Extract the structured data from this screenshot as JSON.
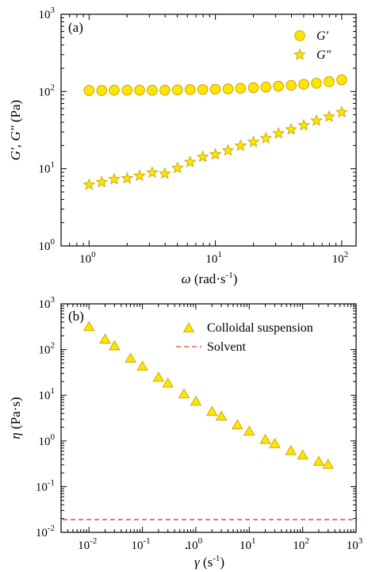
{
  "colors": {
    "marker_fill": "#FFE600",
    "marker_stroke": "#C8A200",
    "solvent_line": "#E03A2A",
    "axis": "#000000"
  },
  "chart_data": [
    {
      "type": "scatter",
      "panel_label": "(a)",
      "xlabel_symbol": "ω",
      "xlabel_unit": " (rad·s",
      "xlabel_unit_sup": "-1",
      "xlabel_unit_tail": ")",
      "ylabel_g1": "G′",
      "ylabel_sep": ", ",
      "ylabel_g2": "G″",
      "ylabel_unit": " (Pa)",
      "x_scale": "log",
      "y_scale": "log",
      "xlim": [
        0.6,
        130
      ],
      "ylim": [
        1,
        1000
      ],
      "x_ticks": [
        {
          "value": 1,
          "base": "10",
          "exp": "0"
        },
        {
          "value": 10,
          "base": "10",
          "exp": "1"
        },
        {
          "value": 100,
          "base": "10",
          "exp": "2"
        }
      ],
      "y_ticks": [
        {
          "value": 1,
          "base": "10",
          "exp": "0"
        },
        {
          "value": 10,
          "base": "10",
          "exp": "1"
        },
        {
          "value": 100,
          "base": "10",
          "exp": "2"
        },
        {
          "value": 1000,
          "base": "10",
          "exp": "3"
        }
      ],
      "legend_position": "top-right",
      "series": [
        {
          "name": "G′",
          "marker": "circle",
          "x": [
            1.0,
            1.26,
            1.58,
            2.0,
            2.51,
            3.16,
            3.98,
            5.01,
            6.31,
            7.94,
            10.0,
            12.6,
            15.8,
            20.0,
            25.1,
            31.6,
            39.8,
            50.1,
            63.1,
            79.4,
            100.0
          ],
          "y": [
            103,
            103,
            104,
            104,
            104,
            104,
            104,
            105,
            106,
            106,
            107,
            108,
            110,
            112,
            114,
            117,
            120,
            124,
            128,
            134,
            142
          ]
        },
        {
          "name": "G″",
          "marker": "star",
          "x": [
            1.0,
            1.26,
            1.58,
            2.0,
            2.51,
            3.16,
            3.98,
            5.01,
            6.31,
            7.94,
            10.0,
            12.6,
            15.8,
            20.0,
            25.1,
            31.6,
            39.8,
            50.1,
            63.1,
            79.4,
            100.0
          ],
          "y": [
            6.2,
            6.7,
            7.3,
            7.5,
            8.1,
            8.9,
            8.6,
            10.2,
            12.2,
            14.2,
            15.3,
            17.2,
            19.8,
            22.2,
            24.8,
            28.6,
            32.2,
            36.4,
            41.8,
            47.2,
            53.8
          ]
        }
      ]
    },
    {
      "type": "scatter",
      "panel_label": "(b)",
      "xlabel_symbol": "γ",
      "xlabel_unit": " (s",
      "xlabel_unit_sup": "-1",
      "xlabel_unit_tail": ")",
      "ylabel_symbol": "η",
      "ylabel_unit": " (Pa·s)",
      "x_scale": "log",
      "y_scale": "log",
      "xlim": [
        0.003,
        1000
      ],
      "ylim": [
        0.01,
        1000
      ],
      "x_ticks": [
        {
          "value": 0.01,
          "base": "10",
          "exp": "-2"
        },
        {
          "value": 0.1,
          "base": "10",
          "exp": "-1"
        },
        {
          "value": 1,
          "base": "10",
          "exp": "0"
        },
        {
          "value": 10,
          "base": "10",
          "exp": "1"
        },
        {
          "value": 100,
          "base": "10",
          "exp": "2"
        },
        {
          "value": 1000,
          "base": "10",
          "exp": "3"
        }
      ],
      "y_ticks": [
        {
          "value": 0.01,
          "base": "10",
          "exp": "-2"
        },
        {
          "value": 0.1,
          "base": "10",
          "exp": "-1"
        },
        {
          "value": 1,
          "base": "10",
          "exp": "0"
        },
        {
          "value": 10,
          "base": "10",
          "exp": "1"
        },
        {
          "value": 100,
          "base": "10",
          "exp": "2"
        },
        {
          "value": 1000,
          "base": "10",
          "exp": "3"
        }
      ],
      "legend_position": "top-right",
      "series": [
        {
          "name": "Colloidal suspension",
          "marker": "triangle",
          "x": [
            0.01,
            0.02,
            0.03,
            0.06,
            0.1,
            0.2,
            0.3,
            0.6,
            1,
            2,
            3,
            6,
            10,
            20,
            30,
            60,
            100,
            200,
            300
          ],
          "y": [
            310,
            165,
            118,
            63,
            42,
            24,
            18,
            10.5,
            7.2,
            4.3,
            3.4,
            2.2,
            1.6,
            1.05,
            0.85,
            0.6,
            0.48,
            0.35,
            0.3
          ]
        },
        {
          "name": "Solvent",
          "marker": "dashed-line",
          "y_constant": 0.019
        }
      ]
    }
  ]
}
